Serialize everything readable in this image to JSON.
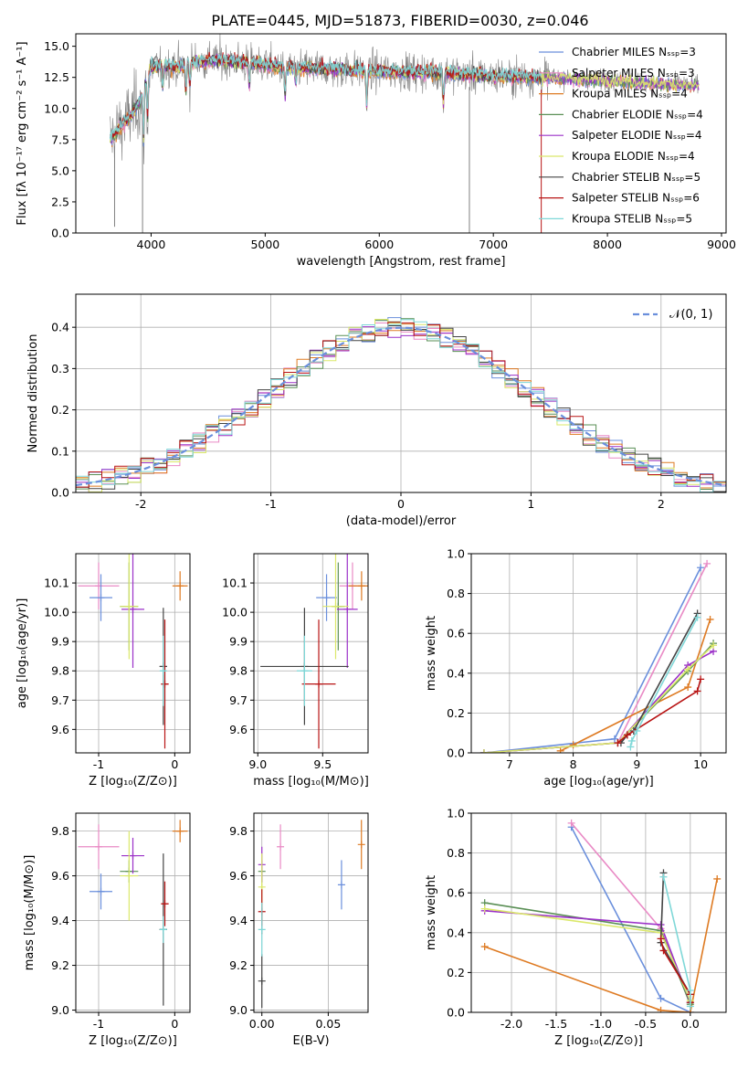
{
  "title": "PLATE=0445, MJD=51873, FIBERID=0030, z=0.046",
  "colors": {
    "chabrier_miles": "#6a8fdc",
    "salpeter_miles": "#e98ac5",
    "kroupa_miles": "#de7a22",
    "chabrier_elodie": "#5a8f55",
    "salpeter_elodie": "#9b30c8",
    "kroupa_elodie": "#dbe86a",
    "chabrier_stelib": "#444444",
    "salpeter_stelib": "#b81414",
    "kroupa_stelib": "#7fd8d8",
    "data": "#808080",
    "normal": "#6a8fdc"
  },
  "chart_data": [
    {
      "id": "spectrum",
      "type": "line",
      "title": "PLATE=0445, MJD=51873, FIBERID=0030, z=0.046",
      "xlabel": "wavelength [Angstrom, rest frame]",
      "ylabel": "Flux [fλ 10⁻¹⁷ erg cm⁻² s⁻¹ A⁻¹]",
      "xlim": [
        3340,
        9040
      ],
      "ylim": [
        0,
        16
      ],
      "xticks": [
        4000,
        5000,
        6000,
        7000,
        8000,
        9000
      ],
      "yticks": [
        0.0,
        2.5,
        5.0,
        7.5,
        10.0,
        12.5,
        15.0
      ],
      "grid": false,
      "legend": "right",
      "legend_entries": [
        {
          "label": "Chabrier MILES",
          "nssp": "Nₛₛₚ=3",
          "color_key": "chabrier_miles"
        },
        {
          "label": "Salpeter MILES",
          "nssp": "Nₛₛₚ=3",
          "color_key": "salpeter_miles"
        },
        {
          "label": "Kroupa MILES",
          "nssp": "Nₛₛₚ=4",
          "color_key": "kroupa_miles"
        },
        {
          "label": "Chabrier ELODIE",
          "nssp": "Nₛₛₚ=4",
          "color_key": "chabrier_elodie"
        },
        {
          "label": "Salpeter ELODIE",
          "nssp": "Nₛₛₚ=4",
          "color_key": "salpeter_elodie"
        },
        {
          "label": "Kroupa ELODIE",
          "nssp": "Nₛₛₚ=4",
          "color_key": "kroupa_elodie"
        },
        {
          "label": "Chabrier STELIB",
          "nssp": "Nₛₛₚ=5",
          "color_key": "chabrier_stelib"
        },
        {
          "label": "Salpeter STELIB",
          "nssp": "Nₛₛₚ=6",
          "color_key": "salpeter_stelib"
        },
        {
          "label": "Kroupa STELIB",
          "nssp": "Nₛₛₚ=5",
          "color_key": "kroupa_stelib"
        }
      ],
      "continuum": {
        "x": [
          3640,
          3700,
          3800,
          3900,
          3950,
          4000,
          4100,
          4200,
          4400,
          4600,
          4800,
          5000,
          5200,
          5500,
          6000,
          6500,
          7000,
          7500,
          8000,
          8500,
          8800
        ],
        "y": [
          7.5,
          8.2,
          9.2,
          10.5,
          12.0,
          13.3,
          13.5,
          13.3,
          13.8,
          13.9,
          13.7,
          13.5,
          13.3,
          13.2,
          13.0,
          12.9,
          12.6,
          12.5,
          12.3,
          12.0,
          11.8
        ]
      }
    },
    {
      "id": "residuals",
      "type": "line",
      "xlabel": "(data-model)/error",
      "ylabel": "Normed distribution",
      "xlim": [
        -2.5,
        2.5
      ],
      "ylim": [
        0,
        0.48
      ],
      "xticks": [
        -2,
        -1,
        0,
        1,
        2
      ],
      "yticks": [
        0.0,
        0.1,
        0.2,
        0.3,
        0.4
      ],
      "grid": true,
      "legend": "top-right",
      "legend_label": "𝒩(0, 1)"
    },
    {
      "id": "age_vs_Z",
      "type": "scatter",
      "xlabel": "Z [log₁₀(Z/Z⊙)]",
      "ylabel": "age  [log₁₀(age/yr)]",
      "xlim": [
        -1.3,
        0.2
      ],
      "ylim": [
        9.52,
        10.2
      ],
      "xticks": [
        -1,
        0
      ],
      "yticks": [
        9.6,
        9.7,
        9.8,
        9.9,
        10.0,
        10.1
      ],
      "grid": true,
      "points": [
        {
          "color_key": "salpeter_miles",
          "x": -1.0,
          "y": 10.09,
          "xerr": 0.27,
          "yerr": 0.08
        },
        {
          "color_key": "chabrier_miles",
          "x": -0.97,
          "y": 10.05,
          "xerr": 0.15,
          "yerr": 0.08
        },
        {
          "color_key": "kroupa_miles",
          "x": 0.07,
          "y": 10.09,
          "xerr": 0.1,
          "yerr": 0.05
        },
        {
          "color_key": "chabrier_elodie",
          "x": -0.6,
          "y": 10.02,
          "xerr": 0.12,
          "yerr": 0.15
        },
        {
          "color_key": "salpeter_elodie",
          "x": -0.55,
          "y": 10.01,
          "xerr": 0.15,
          "yerr": 0.2
        },
        {
          "color_key": "kroupa_elodie",
          "x": -0.6,
          "y": 10.02,
          "xerr": 0.12,
          "yerr": 0.18
        },
        {
          "color_key": "chabrier_stelib",
          "x": -0.15,
          "y": 9.815,
          "xerr": 0.05,
          "yerr": 0.2
        },
        {
          "color_key": "salpeter_stelib",
          "x": -0.13,
          "y": 9.755,
          "xerr": 0.05,
          "yerr": 0.22
        },
        {
          "color_key": "kroupa_stelib",
          "x": -0.15,
          "y": 9.8,
          "xerr": 0.04,
          "yerr": 0.12
        }
      ]
    },
    {
      "id": "age_vs_mass",
      "type": "scatter",
      "xlabel": "mass [log₁₀(M/M⊙)]",
      "xlim": [
        8.97,
        9.85
      ],
      "ylim": [
        9.52,
        10.2
      ],
      "xticks": [
        9.0,
        9.5
      ],
      "yticks": [
        9.6,
        9.7,
        9.8,
        9.9,
        10.0,
        10.1
      ],
      "grid": true,
      "points": [
        {
          "color_key": "salpeter_miles",
          "x": 9.73,
          "y": 10.09,
          "xerr": 0.1,
          "yerr": 0.08
        },
        {
          "color_key": "chabrier_miles",
          "x": 9.53,
          "y": 10.05,
          "xerr": 0.08,
          "yerr": 0.08
        },
        {
          "color_key": "kroupa_miles",
          "x": 9.8,
          "y": 10.09,
          "xerr": 0.1,
          "yerr": 0.05
        },
        {
          "color_key": "chabrier_elodie",
          "x": 9.62,
          "y": 10.02,
          "xerr": 0.05,
          "yerr": 0.15
        },
        {
          "color_key": "salpeter_elodie",
          "x": 9.69,
          "y": 10.01,
          "xerr": 0.08,
          "yerr": 0.2
        },
        {
          "color_key": "kroupa_elodie",
          "x": 9.6,
          "y": 10.02,
          "xerr": 0.1,
          "yerr": 0.18
        },
        {
          "color_key": "chabrier_stelib",
          "x": 9.36,
          "y": 9.815,
          "xerr": 0.34,
          "yerr": 0.2
        },
        {
          "color_key": "salpeter_stelib",
          "x": 9.47,
          "y": 9.755,
          "xerr": 0.13,
          "yerr": 0.22
        },
        {
          "color_key": "kroupa_stelib",
          "x": 9.36,
          "y": 9.8,
          "xerr": 0.06,
          "yerr": 0.12
        }
      ]
    },
    {
      "id": "weight_vs_age",
      "type": "line",
      "xlabel": "age  [log₁₀(age/yr)]",
      "ylabel": "mass weight",
      "xlim": [
        6.4,
        10.4
      ],
      "ylim": [
        0,
        1.0
      ],
      "xticks": [
        7,
        8,
        9,
        10
      ],
      "yticks": [
        0.0,
        0.2,
        0.4,
        0.6,
        0.8,
        1.0
      ],
      "grid": true,
      "series": [
        {
          "color_key": "chabrier_miles",
          "x": [
            6.6,
            8.65,
            10.0
          ],
          "y": [
            0.0,
            0.07,
            0.93
          ]
        },
        {
          "color_key": "salpeter_miles",
          "x": [
            6.6,
            8.7,
            10.1
          ],
          "y": [
            0.0,
            0.05,
            0.95
          ]
        },
        {
          "color_key": "kroupa_miles",
          "x": [
            7.8,
            8.0,
            9.8,
            10.15
          ],
          "y": [
            0.01,
            0.04,
            0.33,
            0.67
          ]
        },
        {
          "color_key": "chabrier_elodie",
          "x": [
            6.6,
            8.7,
            9.8,
            10.2
          ],
          "y": [
            0.0,
            0.05,
            0.41,
            0.55
          ]
        },
        {
          "color_key": "salpeter_elodie",
          "x": [
            6.6,
            8.7,
            9.8,
            10.2
          ],
          "y": [
            0.0,
            0.05,
            0.44,
            0.51
          ]
        },
        {
          "color_key": "kroupa_elodie",
          "x": [
            6.6,
            8.7,
            9.8,
            10.2
          ],
          "y": [
            0.0,
            0.05,
            0.42,
            0.54
          ]
        },
        {
          "color_key": "chabrier_stelib",
          "x": [
            8.75,
            8.85,
            8.95,
            9.95
          ],
          "y": [
            0.05,
            0.09,
            0.11,
            0.7
          ]
        },
        {
          "color_key": "salpeter_stelib",
          "x": [
            8.7,
            8.85,
            9.95,
            10.0
          ],
          "y": [
            0.05,
            0.09,
            0.31,
            0.37
          ]
        },
        {
          "color_key": "kroupa_stelib",
          "x": [
            8.9,
            8.92,
            9.0,
            9.95
          ],
          "y": [
            0.03,
            0.06,
            0.11,
            0.68
          ]
        }
      ]
    },
    {
      "id": "mass_vs_Z",
      "type": "scatter",
      "xlabel": "Z [log₁₀(Z/Z⊙)]",
      "ylabel": "mass [log₁₀(M/M⊙)]",
      "xlim": [
        -1.3,
        0.2
      ],
      "ylim": [
        8.99,
        9.88
      ],
      "xticks": [
        -1,
        0
      ],
      "yticks": [
        9.0,
        9.2,
        9.4,
        9.6,
        9.8
      ],
      "grid": true,
      "points": [
        {
          "color_key": "salpeter_miles",
          "x": -1.0,
          "y": 9.73,
          "xerr": 0.27,
          "yerr": 0.1
        },
        {
          "color_key": "chabrier_miles",
          "x": -0.97,
          "y": 9.53,
          "xerr": 0.15,
          "yerr": 0.08
        },
        {
          "color_key": "kroupa_miles",
          "x": 0.07,
          "y": 9.8,
          "xerr": 0.1,
          "yerr": 0.05
        },
        {
          "color_key": "chabrier_elodie",
          "x": -0.6,
          "y": 9.62,
          "xerr": 0.12,
          "yerr": 0.05
        },
        {
          "color_key": "salpeter_elodie",
          "x": -0.55,
          "y": 9.69,
          "xerr": 0.15,
          "yerr": 0.08
        },
        {
          "color_key": "kroupa_elodie",
          "x": -0.6,
          "y": 9.6,
          "xerr": 0.12,
          "yerr": 0.2
        },
        {
          "color_key": "chabrier_stelib",
          "x": -0.15,
          "y": 9.36,
          "xerr": 0.05,
          "yerr": 0.34
        },
        {
          "color_key": "salpeter_stelib",
          "x": -0.13,
          "y": 9.475,
          "xerr": 0.05,
          "yerr": 0.1
        },
        {
          "color_key": "kroupa_stelib",
          "x": -0.15,
          "y": 9.36,
          "xerr": 0.04,
          "yerr": 0.06
        }
      ]
    },
    {
      "id": "mass_vs_ebv",
      "type": "scatter",
      "xlabel": "E(B-V)",
      "xlim": [
        -0.006,
        0.08
      ],
      "ylim": [
        8.99,
        9.88
      ],
      "xticks": [
        0.0,
        0.05
      ],
      "yticks": [
        9.0,
        9.2,
        9.4,
        9.6,
        9.8
      ],
      "grid": true,
      "points": [
        {
          "color_key": "salpeter_miles",
          "x": 0.014,
          "y": 9.73,
          "xerr": 0,
          "yerr": 0.1
        },
        {
          "color_key": "chabrier_miles",
          "x": 0.06,
          "y": 9.56,
          "xerr": 0,
          "yerr": 0.11
        },
        {
          "color_key": "kroupa_miles",
          "x": 0.075,
          "y": 9.74,
          "xerr": 0,
          "yerr": 0.11
        },
        {
          "color_key": "chabrier_elodie",
          "x": 0.0,
          "y": 9.62,
          "xerr": 0,
          "yerr": 0.05
        },
        {
          "color_key": "salpeter_elodie",
          "x": 0.0,
          "y": 9.65,
          "xerr": 0,
          "yerr": 0.08
        },
        {
          "color_key": "kroupa_elodie",
          "x": 0.0,
          "y": 9.55,
          "xerr": 0,
          "yerr": 0.15
        },
        {
          "color_key": "chabrier_stelib",
          "x": 0.0,
          "y": 9.13,
          "xerr": 0,
          "yerr": 0.12
        },
        {
          "color_key": "salpeter_stelib",
          "x": 0.0,
          "y": 9.44,
          "xerr": 0,
          "yerr": 0.1
        },
        {
          "color_key": "kroupa_stelib",
          "x": 0.0,
          "y": 9.36,
          "xerr": 0,
          "yerr": 0.12
        }
      ]
    },
    {
      "id": "weight_vs_Z",
      "type": "line",
      "xlabel": "Z [log₁₀(Z/Z⊙)]",
      "ylabel": "mass weight",
      "xlim": [
        -2.45,
        0.4
      ],
      "ylim": [
        0,
        1.0
      ],
      "xticks": [
        -2.0,
        -1.5,
        -1.0,
        -0.5,
        0.0
      ],
      "yticks": [
        0.0,
        0.2,
        0.4,
        0.6,
        0.8,
        1.0
      ],
      "grid": true,
      "series": [
        {
          "color_key": "chabrier_miles",
          "x": [
            -1.33,
            -0.33,
            0.0
          ],
          "y": [
            0.93,
            0.07,
            0.0
          ]
        },
        {
          "color_key": "salpeter_miles",
          "x": [
            -1.33,
            -0.33,
            0.0
          ],
          "y": [
            0.95,
            0.42,
            0.05
          ]
        },
        {
          "color_key": "kroupa_miles",
          "x": [
            -2.3,
            -0.33,
            0.0,
            0.3
          ],
          "y": [
            0.33,
            0.01,
            0.0,
            0.67
          ]
        },
        {
          "color_key": "chabrier_elodie",
          "x": [
            -2.3,
            -0.33,
            0.0
          ],
          "y": [
            0.55,
            0.41,
            0.04
          ]
        },
        {
          "color_key": "salpeter_elodie",
          "x": [
            -2.3,
            -0.33,
            0.0
          ],
          "y": [
            0.51,
            0.44,
            0.05
          ]
        },
        {
          "color_key": "kroupa_elodie",
          "x": [
            -2.3,
            -0.33,
            0.0
          ],
          "y": [
            0.52,
            0.4,
            0.06
          ]
        },
        {
          "color_key": "chabrier_stelib",
          "x": [
            -0.3,
            -0.33,
            0.0,
            0.0
          ],
          "y": [
            0.7,
            0.35,
            0.09,
            0.05
          ]
        },
        {
          "color_key": "salpeter_stelib",
          "x": [
            -0.33,
            -0.3,
            0.0,
            0.0
          ],
          "y": [
            0.37,
            0.31,
            0.09,
            0.05
          ]
        },
        {
          "color_key": "kroupa_stelib",
          "x": [
            -0.3,
            0.0,
            0.0
          ],
          "y": [
            0.68,
            0.11,
            0.03
          ]
        }
      ]
    }
  ]
}
